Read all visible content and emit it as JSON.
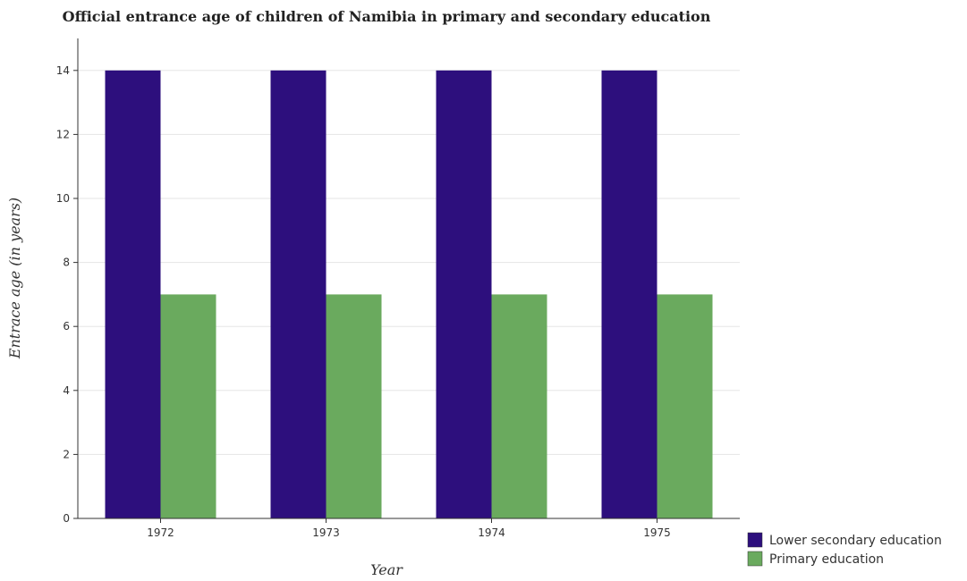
{
  "chart_data": {
    "type": "bar",
    "title": "Official entrance age of children of Namibia in primary and secondary education",
    "xlabel": "Year",
    "ylabel": "Entrace age (in  years)",
    "categories": [
      "1972",
      "1973",
      "1974",
      "1975"
    ],
    "series": [
      {
        "name": "Lower secondary education",
        "values": [
          14,
          14,
          14,
          14
        ],
        "color": "#2d0f7d"
      },
      {
        "name": "Primary education",
        "values": [
          7,
          7,
          7,
          7
        ],
        "color": "#6aaa5e"
      }
    ],
    "ylim": [
      0,
      15
    ],
    "yticks": [
      0,
      2,
      4,
      6,
      8,
      10,
      12,
      14
    ],
    "grid": true,
    "legend": "bottom-right"
  }
}
